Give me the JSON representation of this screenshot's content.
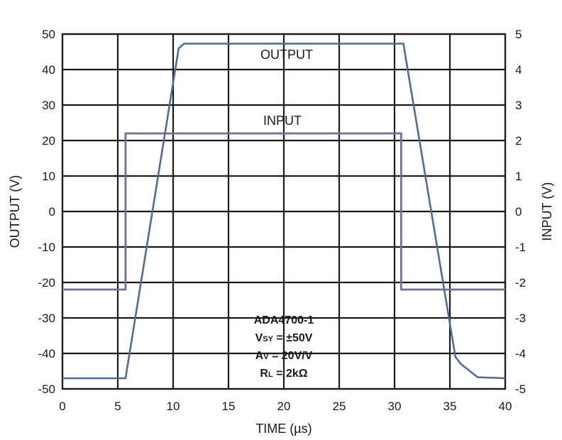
{
  "chart_data": {
    "type": "line",
    "xlabel": "TIME (µs)",
    "ylabel_left": "OUTPUT (V)",
    "ylabel_right": "INPUT (V)",
    "xlim": [
      0,
      40
    ],
    "ylim_left": [
      -50,
      50
    ],
    "ylim_right": [
      -5,
      5
    ],
    "x_ticks": [
      "0",
      "5",
      "10",
      "15",
      "20",
      "25",
      "30",
      "35",
      "40"
    ],
    "y_ticks_left": [
      "50",
      "40",
      "30",
      "20",
      "10",
      "0",
      "-10",
      "-20",
      "-30",
      "-40",
      "-50"
    ],
    "y_ticks_right": [
      "5",
      "4",
      "3",
      "2",
      "1",
      "0",
      "-1",
      "-2",
      "-3",
      "-4",
      "-5"
    ],
    "grid": true,
    "series": [
      {
        "name": "OUTPUT",
        "axis": "left",
        "color": "#4e6d94",
        "x": [
          0,
          5.7,
          10.5,
          11,
          30.8,
          35.5,
          36,
          37.5,
          40
        ],
        "y": [
          -47,
          -47,
          46,
          47.3,
          47.3,
          -41,
          -43,
          -46.7,
          -47
        ]
      },
      {
        "name": "INPUT",
        "axis": "right",
        "color": "#7b6a94",
        "x": [
          0,
          5.7,
          5.7,
          30.6,
          30.6,
          40
        ],
        "y": [
          -2.2,
          -2.2,
          2.2,
          2.2,
          -2.2,
          -2.2
        ]
      }
    ],
    "annotation": {
      "lines": [
        "ADA4700-1",
        "V",
        "A",
        "R"
      ],
      "subs": [
        "",
        "SY",
        "V",
        "L"
      ],
      "rests": [
        "",
        " = ±50V",
        " = 20V/V",
        " = 2kΩ"
      ]
    }
  }
}
